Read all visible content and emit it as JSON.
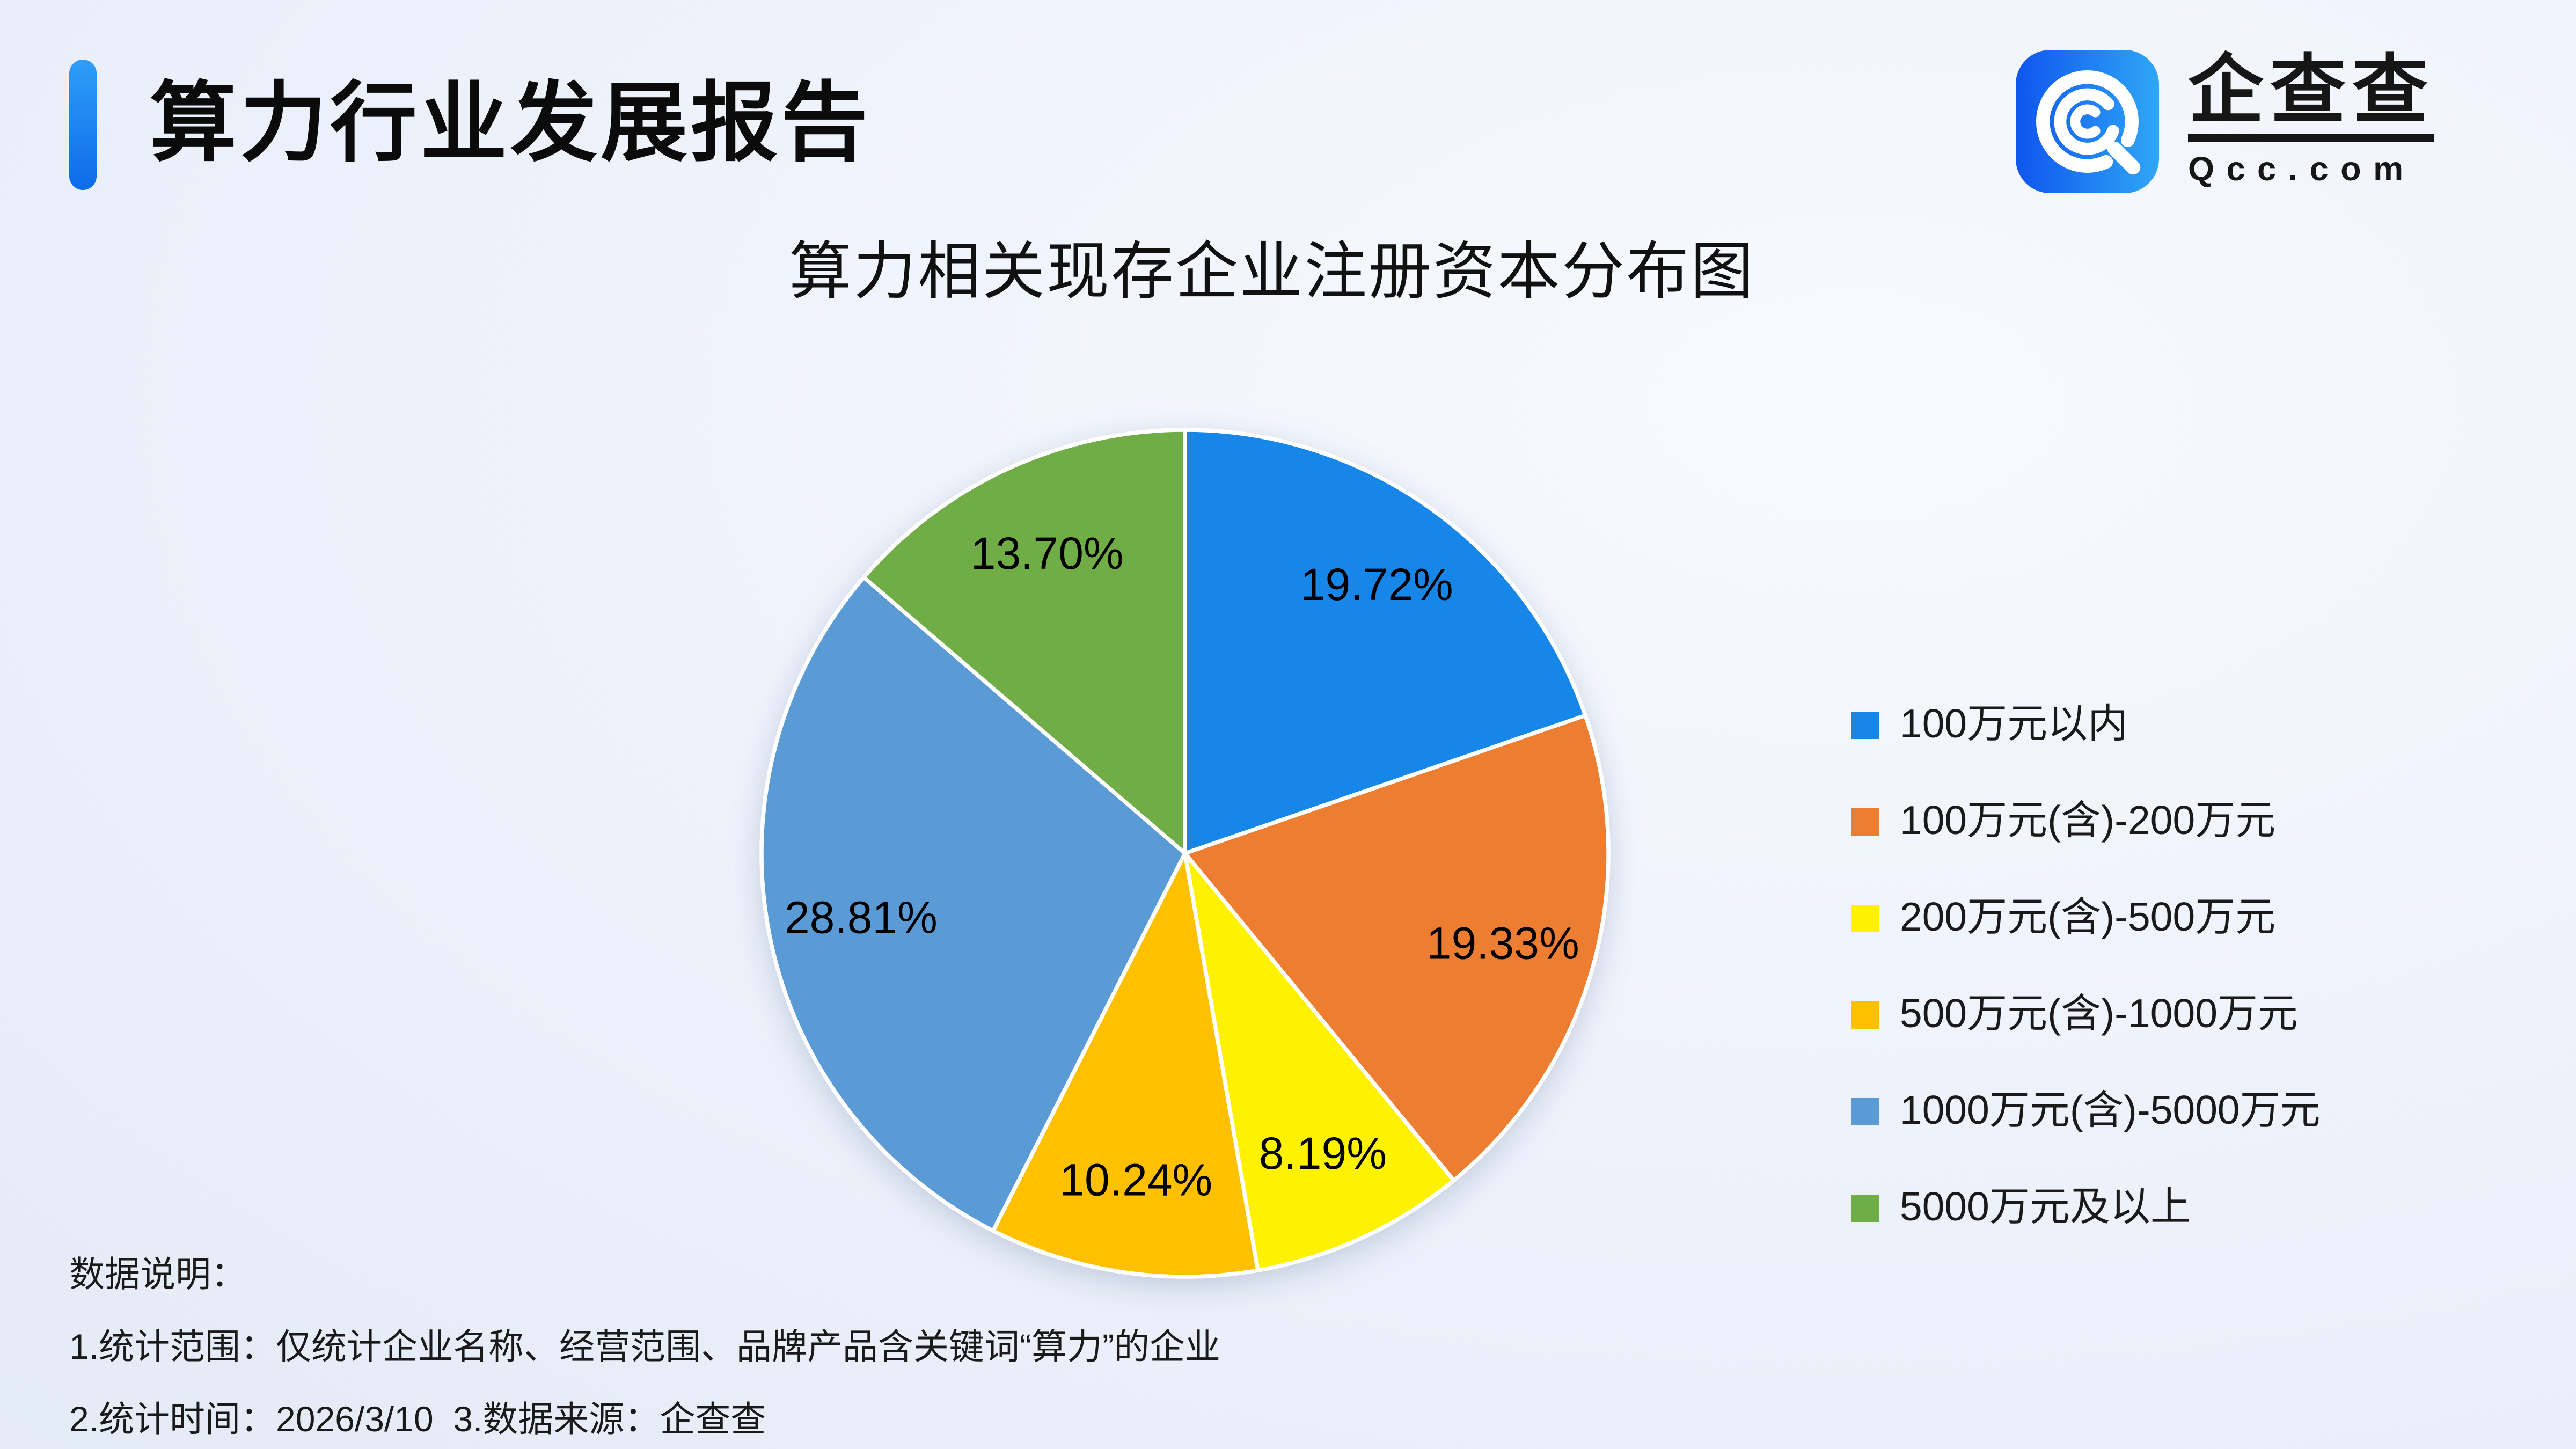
{
  "header": {
    "title": "算力行业发展报告",
    "accent_color": "#1778F2"
  },
  "logo": {
    "brand": "企查查",
    "domain": "Qcc.com",
    "icon": "qcc-magnifier-icon",
    "icon_color_left": "#0F55EF",
    "icon_color_right": "#2FA7F6"
  },
  "chart_data": {
    "type": "pie",
    "title": "算力相关现存企业注册资本分布图",
    "categories": [
      "100万元以内",
      "100万元(含)-200万元",
      "200万元(含)-500万元",
      "500万元(含)-1000万元",
      "1000万元(含)-5000万元",
      "5000万元及以上"
    ],
    "values": [
      19.72,
      19.33,
      8.19,
      10.24,
      28.81,
      13.7
    ],
    "labels": [
      "19.72%",
      "19.33%",
      "8.19%",
      "10.24%",
      "28.81%",
      "13.70%"
    ],
    "colors": [
      "#1786E9",
      "#EC7D31",
      "#FFF200",
      "#FFC000",
      "#5B9BD5",
      "#70AD47"
    ],
    "unit": "%",
    "start_position": "12-oclock",
    "direction": "clockwise",
    "legend_position": "right",
    "label_radius_ratio": 0.78,
    "slice_border_color": "#FFFFFF"
  },
  "notes": {
    "heading": "数据说明：",
    "line1": "1.统计范围：仅统计企业名称、经营范围、品牌产品含关键词“算力”的企业",
    "line2": "2.统计时间：2026/3/10  3.数据来源：企查查"
  }
}
